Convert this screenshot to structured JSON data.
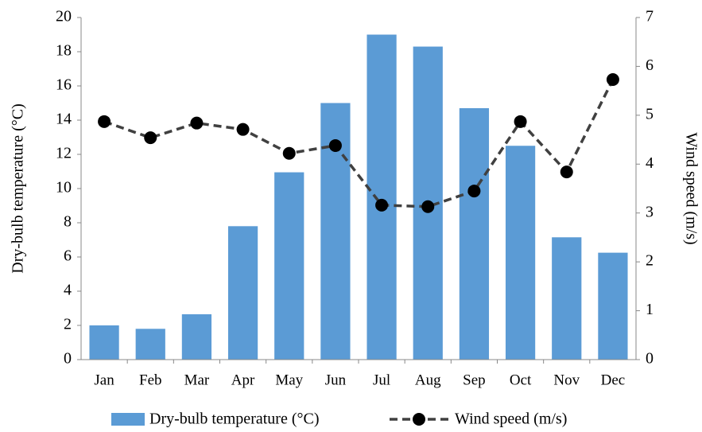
{
  "chart_data": {
    "type": "bar",
    "categories": [
      "Jan",
      "Feb",
      "Mar",
      "Apr",
      "May",
      "Jun",
      "Jul",
      "Aug",
      "Sep",
      "Oct",
      "Nov",
      "Dec"
    ],
    "series": [
      {
        "name": "Dry-bulb temperature (°C)",
        "type": "bar",
        "color": "#5b9bd5",
        "values": [
          2.0,
          1.8,
          2.65,
          7.8,
          10.95,
          15.0,
          19.0,
          18.3,
          14.7,
          12.5,
          7.15,
          6.25
        ]
      },
      {
        "name": "Wind speed (m/s)",
        "type": "line",
        "axis": "y2",
        "color": "#404040",
        "values": [
          4.87,
          4.54,
          4.84,
          4.71,
          4.22,
          4.38,
          3.16,
          3.13,
          3.45,
          4.87,
          3.84,
          5.73
        ]
      }
    ],
    "y_label": "Dry-bulb temperature (°C)",
    "y2_label": "Wind speed (m/s)",
    "ylim": [
      0,
      20
    ],
    "yticks": [
      0,
      2,
      4,
      6,
      8,
      10,
      12,
      14,
      16,
      18,
      20
    ],
    "y2lim": [
      0,
      7
    ],
    "y2ticks": [
      0,
      1,
      2,
      3,
      4,
      5,
      6,
      7
    ],
    "legend": "bottom",
    "grid": false
  }
}
